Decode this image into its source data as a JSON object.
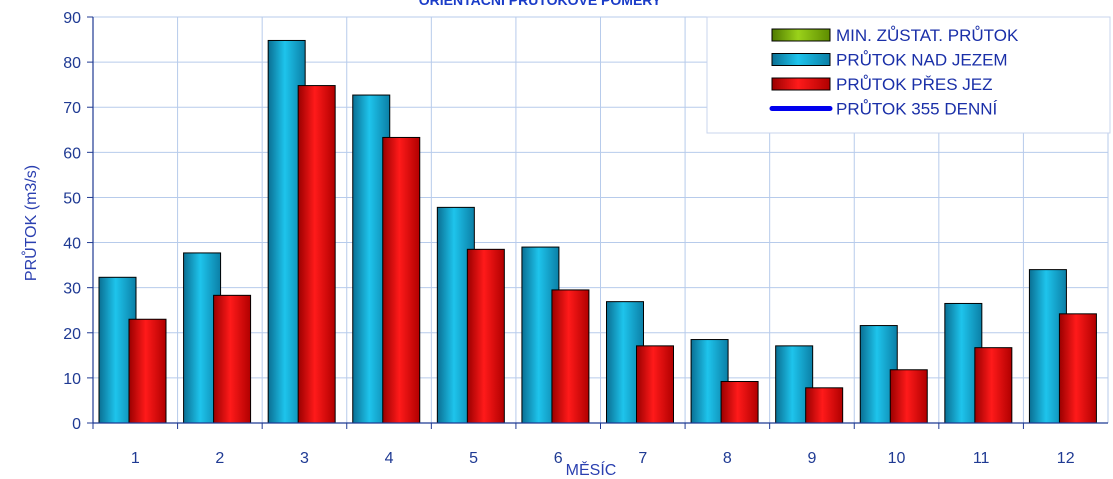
{
  "chart_data": {
    "type": "bar",
    "title": "ORIENTAČNÍ PRŮTOKOVÉ POMĚRY",
    "xlabel": "MĚSÍC",
    "ylabel": "PRŮTOK (m3/s)",
    "ylim": [
      0,
      90
    ],
    "yticks": [
      "0",
      "10",
      "20",
      "30",
      "40",
      "50",
      "60",
      "70",
      "80",
      "90"
    ],
    "categories": [
      "1",
      "2",
      "3",
      "4",
      "5",
      "6",
      "7",
      "8",
      "9",
      "10",
      "11",
      "12"
    ],
    "grid": true,
    "legend_position": "top-right",
    "series": [
      {
        "name": "PRŮTOK NAD JEZEM",
        "color": "#1ab8e0",
        "values": [
          32.3,
          37.7,
          84.8,
          72.7,
          47.8,
          39.0,
          26.9,
          18.5,
          17.1,
          21.6,
          26.5,
          34.0
        ]
      },
      {
        "name": "PRŮTOK PŘES JEZ",
        "color": "#e00000",
        "values": [
          23.0,
          28.3,
          74.8,
          63.3,
          38.5,
          29.5,
          17.1,
          9.2,
          7.8,
          11.8,
          16.7,
          24.2
        ]
      }
    ],
    "legend": [
      {
        "name": "MIN. ZŮSTAT. PRŮTOK",
        "color": "#7ab800",
        "kind": "bar"
      },
      {
        "name": "PRŮTOK NAD JEZEM",
        "color": "#1ab8e0",
        "kind": "bar"
      },
      {
        "name": "PRŮTOK PŘES JEZ",
        "color": "#e00000",
        "kind": "bar"
      },
      {
        "name": "PRŮTOK 355 DENNÍ",
        "color": "#0000ee",
        "kind": "line"
      }
    ]
  }
}
